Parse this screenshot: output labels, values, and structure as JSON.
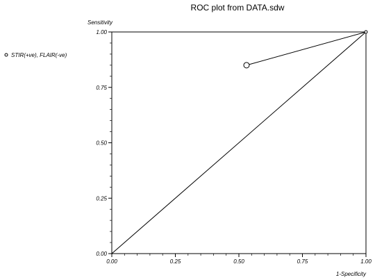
{
  "chart_data": {
    "type": "line",
    "title": "ROC plot from DATA.sdw",
    "xlabel": "1-Specificity",
    "ylabel": "Sensitivity",
    "xlim": [
      0,
      1
    ],
    "ylim": [
      0,
      1
    ],
    "x_ticks": [
      "0.00",
      "0.25",
      "0.50",
      "0.75",
      "1.00"
    ],
    "y_ticks": [
      "0.00",
      "0.25",
      "0.50",
      "0.75",
      "1.00"
    ],
    "x_tick_values": [
      0,
      0.25,
      0.5,
      0.75,
      1
    ],
    "y_tick_values": [
      0,
      0.25,
      0.5,
      0.75,
      1
    ],
    "grid": false,
    "legend_position": "left",
    "reference_line": {
      "x": [
        0,
        1
      ],
      "y": [
        0,
        1
      ]
    },
    "series": [
      {
        "name": "STIR(+ve), FLAIR(-ve)",
        "x": [
          0.53,
          1.0
        ],
        "y": [
          0.85,
          1.0
        ],
        "marker": "open-circle",
        "color": "#000000"
      }
    ]
  }
}
